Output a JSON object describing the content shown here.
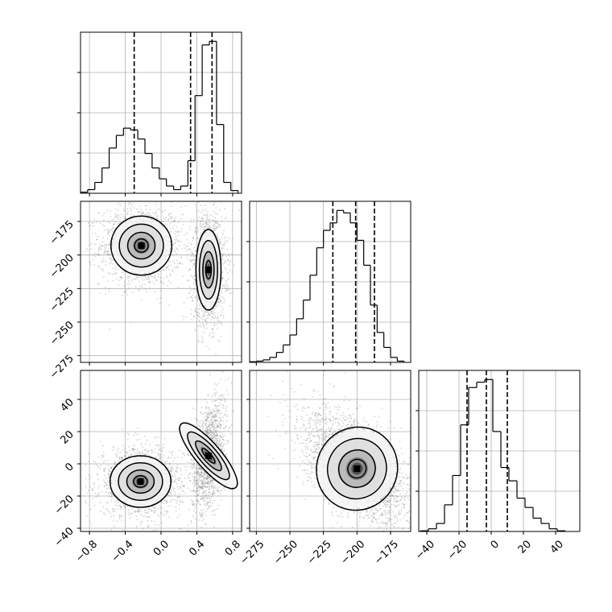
{
  "chart_data": {
    "type": "corner",
    "parameters": [
      "",
      "",
      ""
    ],
    "grid": true,
    "histograms": [
      {
        "param": 0,
        "range": [
          -0.9,
          0.9
        ],
        "quantiles": [
          -0.3,
          0.33,
          0.57
        ],
        "bin_edges": [
          -0.9,
          -0.82,
          -0.74,
          -0.66,
          -0.58,
          -0.5,
          -0.42,
          -0.34,
          -0.26,
          -0.18,
          -0.1,
          -0.02,
          0.06,
          0.14,
          0.22,
          0.3,
          0.38,
          0.46,
          0.54,
          0.62,
          0.7,
          0.78,
          0.86
        ],
        "counts": [
          0.6,
          2,
          6,
          14,
          25,
          32,
          36,
          35,
          30,
          22,
          14,
          8,
          4,
          2,
          4,
          18,
          54,
          82,
          84,
          38,
          6,
          1.5
        ]
      },
      {
        "param": 1,
        "range": [
          -280,
          -160
        ],
        "quantiles": [
          -218,
          -201,
          -187
        ],
        "bin_edges": [
          -280,
          -275,
          -270,
          -265,
          -260,
          -255,
          -250,
          -245,
          -240,
          -235,
          -230,
          -225,
          -220,
          -215,
          -210,
          -205,
          -200,
          -195,
          -190,
          -185,
          -180,
          -175,
          -170,
          -165
        ],
        "counts": [
          0.5,
          1,
          2,
          4,
          8,
          14,
          22,
          35,
          50,
          70,
          92,
          106,
          112,
          122,
          120,
          112,
          98,
          78,
          46,
          24,
          12,
          4,
          1
        ]
      },
      {
        "param": 2,
        "range": [
          -45,
          55
        ],
        "quantiles": [
          -15,
          -3,
          10
        ],
        "bin_edges": [
          -44,
          -39,
          -34,
          -29,
          -24,
          -19,
          -14,
          -9,
          -4,
          1,
          6,
          11,
          16,
          21,
          26,
          31,
          36,
          41,
          46
        ],
        "counts": [
          0.5,
          2,
          6,
          20,
          42,
          80,
          108,
          112,
          114,
          75,
          48,
          38,
          25,
          18,
          10,
          6,
          2,
          0.5
        ]
      }
    ],
    "scatter_panels": [
      {
        "x_param": 0,
        "y_param": 1,
        "xlim": [
          -0.9,
          0.9
        ],
        "ylim": [
          -280,
          -160
        ],
        "clusters": [
          {
            "cx": -0.22,
            "cy": -193,
            "sx": 0.17,
            "sy": 11,
            "rho": 0.0
          },
          {
            "cx": 0.53,
            "cy": -211,
            "sx": 0.07,
            "sy": 15,
            "rho": 0.0
          }
        ]
      },
      {
        "x_param": 0,
        "y_param": 2,
        "xlim": [
          -0.9,
          0.9
        ],
        "ylim": [
          -42,
          58
        ],
        "clusters": [
          {
            "cx": -0.23,
            "cy": -11,
            "sx": 0.17,
            "sy": 8,
            "rho": 0.0
          },
          {
            "cx": 0.53,
            "cy": 5,
            "sx": 0.07,
            "sy": 13,
            "rho": 0.3
          }
        ]
      },
      {
        "x_param": 1,
        "y_param": 2,
        "xlim": [
          -280,
          -160
        ],
        "ylim": [
          -42,
          58
        ],
        "clusters": [
          {
            "cx": -200,
            "cy": -3,
            "sx": 15,
            "sy": 13,
            "rho": -0.55
          }
        ]
      }
    ],
    "ticks": [
      {
        "param": 0,
        "values": [
          -0.8,
          -0.4,
          0.0,
          0.4,
          0.8
        ],
        "labels": [
          "−0.8",
          "−0.4",
          "0.0",
          "0.4",
          "0.8"
        ]
      },
      {
        "param": 1,
        "values": [
          -275,
          -250,
          -225,
          -200,
          -175
        ],
        "labels": [
          "−275",
          "−250",
          "−225",
          "−200",
          "−175"
        ]
      },
      {
        "param": 2,
        "values": [
          -40,
          -20,
          0,
          20,
          40
        ],
        "labels": [
          "−40",
          "−20",
          "0",
          "20",
          "40"
        ]
      }
    ],
    "colors": {
      "scatter": "#808080",
      "contour": "#000000",
      "grid": "#b0b0b0"
    }
  }
}
